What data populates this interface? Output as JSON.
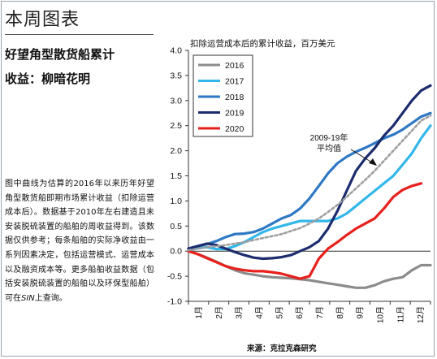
{
  "header": {
    "title": "本周图表"
  },
  "subtitle": {
    "line1": "好望角型散货船累计",
    "line2": "收益：柳暗花明"
  },
  "description": {
    "text_before": "图中曲线为估算的2016年以来历年好望角型散货船即期市场累计收益（扣除运营成本后）。数据基于2010年左右建造且未安装脱硫装置的船舶的周收益得到。该数据仅供参考；每条船舶的实际净收益由一系列因素决定，包括运营模式、运营成本以及融资成本等。更多船舶收益数据（包括安装脱硫装置的船舶以及环保型船舶）可在",
    "text_italic": "SIN",
    "text_after": "上查询。"
  },
  "source": "来源：克拉克森研究",
  "chart_data": {
    "type": "line",
    "title": "扣除运营成本后的累计收益，百万美元",
    "xlabel": "",
    "ylabel": "",
    "ylim": [
      -1.0,
      4.0
    ],
    "yticks": [
      "4.0",
      "3.5",
      "3.0",
      "2.5",
      "2.0",
      "1.5",
      "1.0",
      "0.5",
      "0.0",
      "-0.5",
      "-1.0"
    ],
    "months": [
      "1月",
      "2月",
      "3月",
      "4月",
      "5月",
      "6月",
      "7月",
      "8月",
      "9月",
      "10月",
      "11月",
      "12月"
    ],
    "x_range": [
      0,
      52
    ],
    "grid": false,
    "legend_position": "top-left",
    "annotation": {
      "line1": "2009-19年",
      "line2": "平均值"
    },
    "series": [
      {
        "name": "2016",
        "color": "#8c8c8c",
        "x": [
          0,
          2,
          4,
          6,
          8,
          10,
          12,
          14,
          16,
          18,
          20,
          22,
          24,
          26,
          28,
          30,
          32,
          34,
          36,
          38,
          40,
          42,
          44,
          46,
          48,
          50,
          52
        ],
        "y": [
          0.0,
          -0.06,
          -0.13,
          -0.21,
          -0.3,
          -0.38,
          -0.44,
          -0.47,
          -0.5,
          -0.52,
          -0.53,
          -0.54,
          -0.56,
          -0.58,
          -0.61,
          -0.64,
          -0.67,
          -0.7,
          -0.73,
          -0.73,
          -0.68,
          -0.6,
          -0.55,
          -0.52,
          -0.38,
          -0.28,
          -0.28
        ]
      },
      {
        "name": "2017",
        "color": "#33b7ea",
        "x": [
          0,
          2,
          4,
          6,
          8,
          10,
          12,
          14,
          16,
          18,
          20,
          22,
          24,
          26,
          28,
          30,
          32,
          34,
          36,
          38,
          40,
          42,
          44,
          46,
          48,
          50,
          52
        ],
        "y": [
          0.02,
          0.06,
          0.08,
          0.04,
          0.04,
          0.1,
          0.18,
          0.28,
          0.38,
          0.45,
          0.5,
          0.55,
          0.6,
          0.6,
          0.6,
          0.6,
          0.65,
          0.75,
          0.9,
          1.05,
          1.2,
          1.35,
          1.5,
          1.72,
          1.95,
          2.25,
          2.5
        ]
      },
      {
        "name": "2018",
        "color": "#2f78c4",
        "x": [
          0,
          2,
          4,
          6,
          8,
          10,
          12,
          14,
          16,
          18,
          20,
          22,
          24,
          26,
          28,
          30,
          32,
          34,
          36,
          38,
          40,
          42,
          44,
          46,
          48,
          50,
          52
        ],
        "y": [
          0.05,
          0.1,
          0.14,
          0.2,
          0.28,
          0.34,
          0.35,
          0.38,
          0.45,
          0.55,
          0.65,
          0.72,
          0.85,
          1.05,
          1.3,
          1.55,
          1.75,
          1.88,
          1.98,
          2.06,
          2.15,
          2.25,
          2.32,
          2.42,
          2.55,
          2.68,
          2.75
        ]
      },
      {
        "name": "2019",
        "color": "#1c2c6e",
        "x": [
          0,
          2,
          4,
          6,
          8,
          10,
          12,
          14,
          16,
          18,
          20,
          22,
          24,
          26,
          28,
          30,
          32,
          34,
          36,
          38,
          40,
          42,
          44,
          46,
          48,
          50,
          52
        ],
        "y": [
          0.05,
          0.1,
          0.15,
          0.12,
          0.05,
          -0.02,
          -0.08,
          -0.13,
          -0.15,
          -0.14,
          -0.12,
          -0.08,
          0.0,
          0.08,
          0.2,
          0.45,
          0.8,
          1.2,
          1.6,
          1.85,
          2.05,
          2.3,
          2.5,
          2.75,
          3.0,
          3.2,
          3.3
        ]
      },
      {
        "name": "2020",
        "color": "#e8201c",
        "x": [
          0,
          2,
          4,
          6,
          8,
          10,
          12,
          14,
          16,
          18,
          20,
          22,
          24,
          26,
          28,
          30,
          32,
          34,
          36,
          38,
          40,
          42,
          44,
          46,
          48,
          50
        ],
        "y": [
          0.0,
          -0.06,
          -0.14,
          -0.22,
          -0.3,
          -0.35,
          -0.38,
          -0.4,
          -0.4,
          -0.42,
          -0.45,
          -0.5,
          -0.55,
          -0.5,
          -0.15,
          0.05,
          0.18,
          0.32,
          0.45,
          0.55,
          0.65,
          0.85,
          1.08,
          1.22,
          1.3,
          1.35
        ]
      },
      {
        "name": "",
        "color": "#9e9e9e",
        "dashed": true,
        "x": [
          0,
          2,
          4,
          6,
          8,
          10,
          12,
          14,
          16,
          18,
          20,
          22,
          24,
          26,
          28,
          30,
          32,
          34,
          36,
          38,
          40,
          42,
          44,
          46,
          48,
          50,
          52
        ],
        "y": [
          0.02,
          0.05,
          0.08,
          0.1,
          0.12,
          0.15,
          0.18,
          0.22,
          0.26,
          0.3,
          0.34,
          0.4,
          0.46,
          0.55,
          0.65,
          0.78,
          0.92,
          1.08,
          1.25,
          1.42,
          1.6,
          1.8,
          2.0,
          2.2,
          2.4,
          2.6,
          2.7
        ]
      }
    ]
  },
  "colors": {
    "axis": "#333333",
    "frame": "#9aa3ad"
  }
}
